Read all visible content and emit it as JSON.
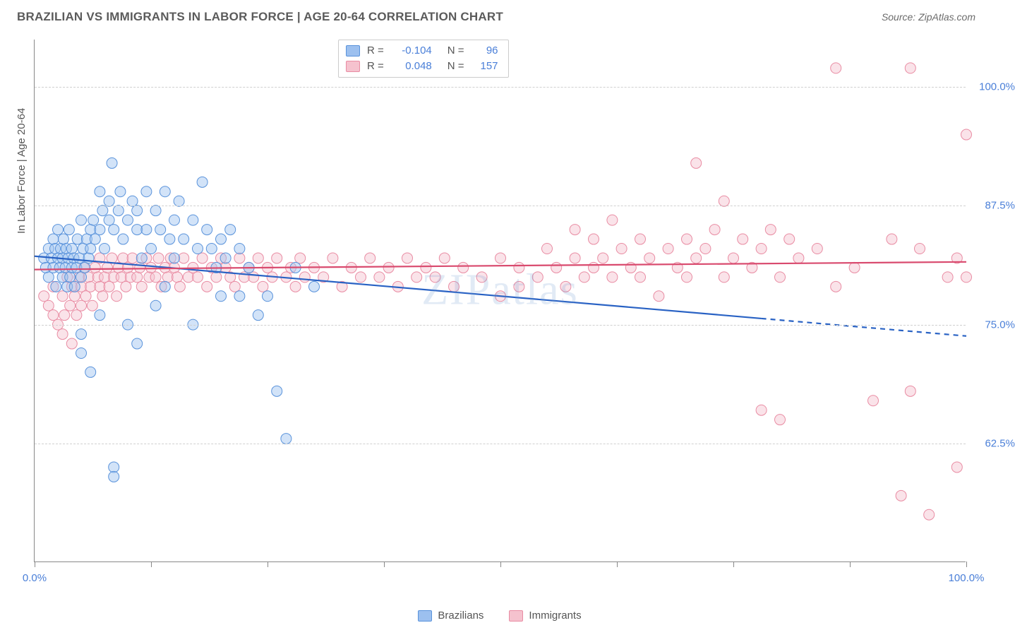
{
  "header": {
    "title": "BRAZILIAN VS IMMIGRANTS IN LABOR FORCE | AGE 20-64 CORRELATION CHART",
    "source": "Source: ZipAtlas.com"
  },
  "watermark": "ZIPatlas",
  "chart": {
    "type": "scatter",
    "ylabel": "In Labor Force | Age 20-64",
    "background_color": "#ffffff",
    "grid_color": "#d0d0d0",
    "axis_color": "#888888",
    "label_color": "#4a7fd8",
    "text_color": "#555555",
    "xlim": [
      0,
      100
    ],
    "ylim": [
      50,
      105
    ],
    "xtick_positions": [
      0,
      12.5,
      25,
      37.5,
      50,
      62.5,
      75,
      87.5,
      100
    ],
    "xtick_labels": {
      "0": "0.0%",
      "100": "100.0%"
    },
    "ytick_positions": [
      62.5,
      75.0,
      87.5,
      100.0
    ],
    "ytick_labels": [
      "62.5%",
      "75.0%",
      "87.5%",
      "100.0%"
    ],
    "marker_radius": 7.5,
    "marker_opacity": 0.45,
    "line_width": 2.2,
    "series": {
      "brazilians": {
        "label": "Brazilians",
        "color_fill": "#9cc0ef",
        "color_stroke": "#5a93db",
        "line_color": "#2962c4",
        "R": "-0.104",
        "N": "96",
        "trend": {
          "y_at_x0": 82.2,
          "y_at_x100": 73.8,
          "solid_until_x": 78
        },
        "points": [
          [
            1,
            82
          ],
          [
            1.2,
            81
          ],
          [
            1.5,
            83
          ],
          [
            1.5,
            80
          ],
          [
            1.8,
            82
          ],
          [
            2,
            84
          ],
          [
            2,
            81
          ],
          [
            2.2,
            83
          ],
          [
            2.3,
            79
          ],
          [
            2.5,
            82
          ],
          [
            2.5,
            85
          ],
          [
            2.7,
            81
          ],
          [
            2.8,
            83
          ],
          [
            3,
            82
          ],
          [
            3,
            80
          ],
          [
            3.1,
            84
          ],
          [
            3.3,
            81
          ],
          [
            3.4,
            83
          ],
          [
            3.5,
            79
          ],
          [
            3.6,
            82
          ],
          [
            3.7,
            85
          ],
          [
            3.8,
            80
          ],
          [
            4,
            81
          ],
          [
            4,
            83
          ],
          [
            4.2,
            82
          ],
          [
            4.3,
            79
          ],
          [
            4.5,
            81
          ],
          [
            4.6,
            84
          ],
          [
            4.8,
            82
          ],
          [
            5,
            80
          ],
          [
            5,
            86
          ],
          [
            5.2,
            83
          ],
          [
            5.4,
            81
          ],
          [
            5.6,
            84
          ],
          [
            5.8,
            82
          ],
          [
            6,
            85
          ],
          [
            6,
            83
          ],
          [
            6.3,
            86
          ],
          [
            6.5,
            84
          ],
          [
            7,
            89
          ],
          [
            7,
            85
          ],
          [
            7.3,
            87
          ],
          [
            7.5,
            83
          ],
          [
            8,
            88
          ],
          [
            8,
            86
          ],
          [
            8.3,
            92
          ],
          [
            8.5,
            85
          ],
          [
            9,
            87
          ],
          [
            9.2,
            89
          ],
          [
            9.5,
            84
          ],
          [
            10,
            86
          ],
          [
            10.5,
            88
          ],
          [
            11,
            85
          ],
          [
            11,
            87
          ],
          [
            11.5,
            82
          ],
          [
            12,
            89
          ],
          [
            12,
            85
          ],
          [
            12.5,
            83
          ],
          [
            13,
            87
          ],
          [
            13.5,
            85
          ],
          [
            14,
            89
          ],
          [
            14.5,
            84
          ],
          [
            15,
            86
          ],
          [
            15,
            82
          ],
          [
            15.5,
            88
          ],
          [
            16,
            84
          ],
          [
            17,
            86
          ],
          [
            17.5,
            83
          ],
          [
            18,
            90
          ],
          [
            18.5,
            85
          ],
          [
            19,
            83
          ],
          [
            19.5,
            81
          ],
          [
            20,
            78
          ],
          [
            20,
            84
          ],
          [
            20.5,
            82
          ],
          [
            21,
            85
          ],
          [
            22,
            83
          ],
          [
            23,
            81
          ],
          [
            5,
            74
          ],
          [
            5,
            72
          ],
          [
            6,
            70
          ],
          [
            7,
            76
          ],
          [
            8.5,
            60
          ],
          [
            8.5,
            59
          ],
          [
            10,
            75
          ],
          [
            11,
            73
          ],
          [
            13,
            77
          ],
          [
            14,
            79
          ],
          [
            17,
            75
          ],
          [
            22,
            78
          ],
          [
            24,
            76
          ],
          [
            25,
            78
          ],
          [
            26,
            68
          ],
          [
            27,
            63
          ],
          [
            28,
            81
          ],
          [
            30,
            79
          ]
        ]
      },
      "immigrants": {
        "label": "Immigrants",
        "color_fill": "#f5c2ce",
        "color_stroke": "#e98ca3",
        "line_color": "#d94a6e",
        "R": "0.048",
        "N": "157",
        "trend": {
          "y_at_x0": 80.8,
          "y_at_x100": 81.6,
          "solid_until_x": 100
        },
        "points": [
          [
            1,
            78
          ],
          [
            1.5,
            77
          ],
          [
            2,
            76
          ],
          [
            2,
            79
          ],
          [
            2.5,
            75
          ],
          [
            3,
            78
          ],
          [
            3,
            74
          ],
          [
            3.2,
            76
          ],
          [
            3.5,
            80
          ],
          [
            3.8,
            77
          ],
          [
            4,
            73
          ],
          [
            4,
            79
          ],
          [
            4.3,
            78
          ],
          [
            4.5,
            76
          ],
          [
            4.8,
            80
          ],
          [
            5,
            79
          ],
          [
            5,
            77
          ],
          [
            5.3,
            81
          ],
          [
            5.5,
            78
          ],
          [
            5.8,
            80
          ],
          [
            6,
            79
          ],
          [
            6.2,
            77
          ],
          [
            6.5,
            81
          ],
          [
            6.8,
            80
          ],
          [
            7,
            79
          ],
          [
            7,
            82
          ],
          [
            7.3,
            78
          ],
          [
            7.5,
            80
          ],
          [
            7.8,
            81
          ],
          [
            8,
            79
          ],
          [
            8.3,
            82
          ],
          [
            8.5,
            80
          ],
          [
            8.8,
            78
          ],
          [
            9,
            81
          ],
          [
            9.3,
            80
          ],
          [
            9.5,
            82
          ],
          [
            9.8,
            79
          ],
          [
            10,
            81
          ],
          [
            10.3,
            80
          ],
          [
            10.5,
            82
          ],
          [
            11,
            80
          ],
          [
            11.3,
            81
          ],
          [
            11.5,
            79
          ],
          [
            12,
            82
          ],
          [
            12.3,
            80
          ],
          [
            12.5,
            81
          ],
          [
            13,
            80
          ],
          [
            13.3,
            82
          ],
          [
            13.6,
            79
          ],
          [
            14,
            81
          ],
          [
            14.3,
            80
          ],
          [
            14.6,
            82
          ],
          [
            15,
            81
          ],
          [
            15.3,
            80
          ],
          [
            15.6,
            79
          ],
          [
            16,
            82
          ],
          [
            16.5,
            80
          ],
          [
            17,
            81
          ],
          [
            17.5,
            80
          ],
          [
            18,
            82
          ],
          [
            18.5,
            79
          ],
          [
            19,
            81
          ],
          [
            19.5,
            80
          ],
          [
            20,
            82
          ],
          [
            20.5,
            81
          ],
          [
            21,
            80
          ],
          [
            21.5,
            79
          ],
          [
            22,
            82
          ],
          [
            22.5,
            80
          ],
          [
            23,
            81
          ],
          [
            23.5,
            80
          ],
          [
            24,
            82
          ],
          [
            24.5,
            79
          ],
          [
            25,
            81
          ],
          [
            25.5,
            80
          ],
          [
            26,
            82
          ],
          [
            27,
            80
          ],
          [
            27.5,
            81
          ],
          [
            28,
            79
          ],
          [
            28.5,
            82
          ],
          [
            29,
            80
          ],
          [
            30,
            81
          ],
          [
            31,
            80
          ],
          [
            32,
            82
          ],
          [
            33,
            79
          ],
          [
            34,
            81
          ],
          [
            35,
            80
          ],
          [
            36,
            82
          ],
          [
            37,
            80
          ],
          [
            38,
            81
          ],
          [
            39,
            79
          ],
          [
            40,
            82
          ],
          [
            41,
            80
          ],
          [
            42,
            81
          ],
          [
            43,
            80
          ],
          [
            44,
            82
          ],
          [
            45,
            79
          ],
          [
            46,
            81
          ],
          [
            48,
            80
          ],
          [
            50,
            82
          ],
          [
            50,
            78
          ],
          [
            52,
            81
          ],
          [
            52,
            79
          ],
          [
            54,
            80
          ],
          [
            55,
            83
          ],
          [
            56,
            81
          ],
          [
            57,
            79
          ],
          [
            58,
            82
          ],
          [
            58,
            85
          ],
          [
            59,
            80
          ],
          [
            60,
            81
          ],
          [
            60,
            84
          ],
          [
            61,
            82
          ],
          [
            62,
            80
          ],
          [
            62,
            86
          ],
          [
            63,
            83
          ],
          [
            64,
            81
          ],
          [
            65,
            80
          ],
          [
            65,
            84
          ],
          [
            66,
            82
          ],
          [
            67,
            78
          ],
          [
            68,
            83
          ],
          [
            69,
            81
          ],
          [
            70,
            84
          ],
          [
            70,
            80
          ],
          [
            71,
            82
          ],
          [
            71,
            92
          ],
          [
            72,
            83
          ],
          [
            73,
            85
          ],
          [
            74,
            80
          ],
          [
            74,
            88
          ],
          [
            75,
            82
          ],
          [
            76,
            84
          ],
          [
            77,
            81
          ],
          [
            78,
            66
          ],
          [
            78,
            83
          ],
          [
            79,
            85
          ],
          [
            80,
            80
          ],
          [
            80,
            65
          ],
          [
            81,
            84
          ],
          [
            82,
            82
          ],
          [
            84,
            83
          ],
          [
            86,
            102
          ],
          [
            86,
            79
          ],
          [
            88,
            81
          ],
          [
            90,
            67
          ],
          [
            92,
            84
          ],
          [
            93,
            57
          ],
          [
            94,
            102
          ],
          [
            94,
            68
          ],
          [
            95,
            83
          ],
          [
            96,
            55
          ],
          [
            98,
            80
          ],
          [
            99,
            82
          ],
          [
            99,
            60
          ],
          [
            100,
            95
          ],
          [
            100,
            80
          ]
        ]
      }
    }
  },
  "legend_bottom": [
    {
      "label": "Brazilians",
      "fill": "#9cc0ef",
      "stroke": "#5a93db"
    },
    {
      "label": "Immigrants",
      "fill": "#f5c2ce",
      "stroke": "#e98ca3"
    }
  ]
}
